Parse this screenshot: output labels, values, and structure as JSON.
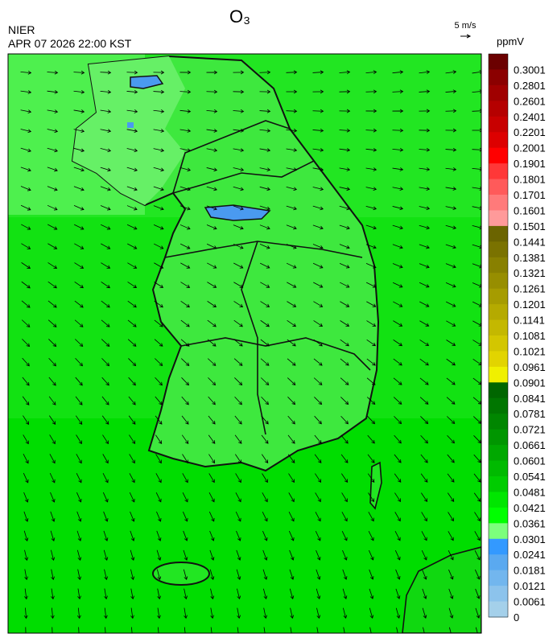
{
  "header": {
    "title": "O₃",
    "agency": "NIER",
    "datetime": "APR 07 2026 22:00 KST",
    "wind_scale": "5 m/s"
  },
  "colorbar": {
    "unit": "ppmV",
    "labels": [
      "0.3001",
      "0.2801",
      "0.2601",
      "0.2401",
      "0.2201",
      "0.2001",
      "0.1901",
      "0.1801",
      "0.1701",
      "0.1601",
      "0.1501",
      "0.1441",
      "0.1381",
      "0.1321",
      "0.1261",
      "0.1201",
      "0.1141",
      "0.1081",
      "0.1021",
      "0.0961",
      "0.0901",
      "0.0841",
      "0.0781",
      "0.0721",
      "0.0661",
      "0.0601",
      "0.0541",
      "0.0481",
      "0.0421",
      "0.0361",
      "0.0301",
      "0.0241",
      "0.0181",
      "0.0121",
      "0.0061",
      "0"
    ],
    "colors": [
      "#6b0000",
      "#8b0000",
      "#a00000",
      "#b50000",
      "#c80000",
      "#dd0000",
      "#ff0000",
      "#ff3838",
      "#ff5a5a",
      "#ff7a7a",
      "#ff9a9a",
      "#6b6400",
      "#7a7200",
      "#888000",
      "#978e00",
      "#a69c00",
      "#b5aa00",
      "#c4b800",
      "#d3c600",
      "#e2d400",
      "#f0f000",
      "#006600",
      "#007600",
      "#008600",
      "#009600",
      "#00a800",
      "#00ba00",
      "#00cc00",
      "#00e600",
      "#00ff00",
      "#7cff7c",
      "#3399ff",
      "#5aa9f0",
      "#72b6ee",
      "#8cc3ec",
      "#a4d0ea"
    ]
  }
}
